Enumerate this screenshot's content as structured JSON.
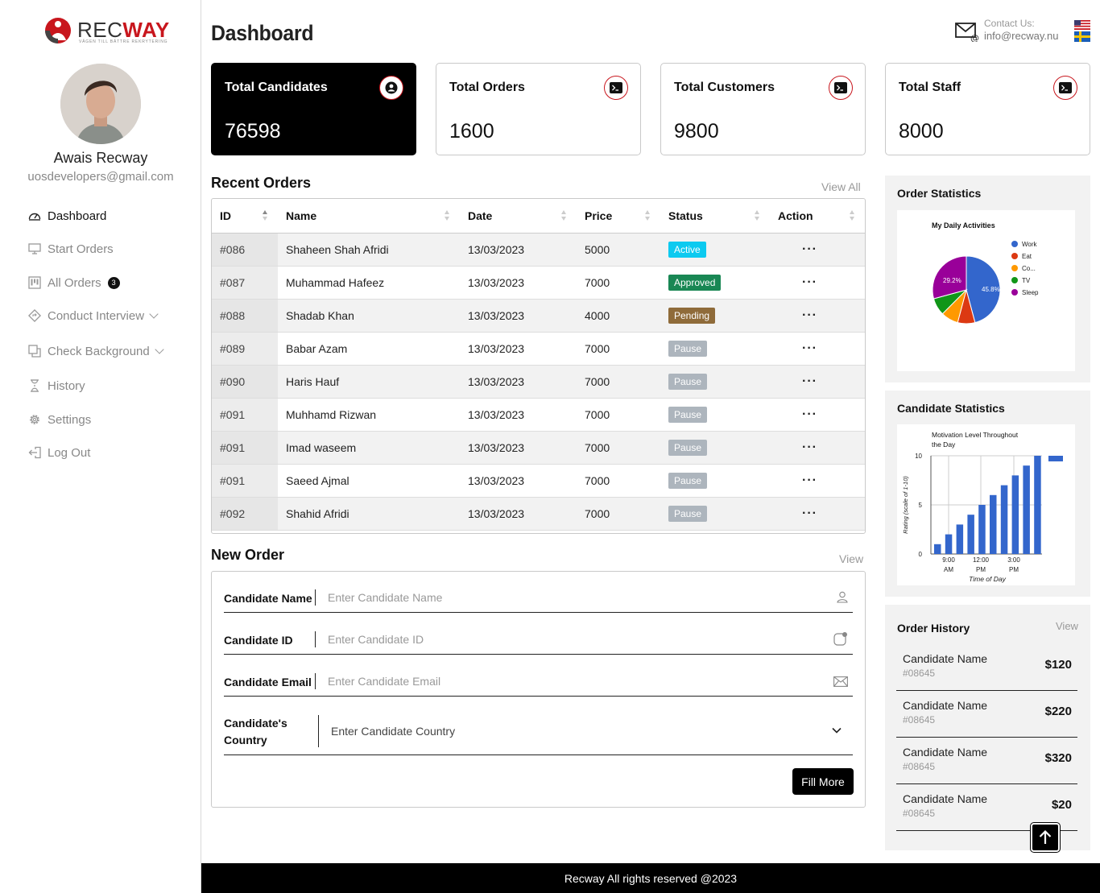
{
  "brand": {
    "name_part1": "REC",
    "name_part2": "WAY",
    "tagline": "VÄGEN TILL BÄTTRE REKRYTERING"
  },
  "user": {
    "name": "Awais Recway",
    "email": "uosdevelopers@gmail.com"
  },
  "sidebar": {
    "items": [
      {
        "label": "Dashboard",
        "icon": "speedometer-icon",
        "active": true
      },
      {
        "label": "Start Orders",
        "icon": "monitor-icon"
      },
      {
        "label": "All Orders",
        "icon": "kanban-icon",
        "badge": "3"
      },
      {
        "label": "Conduct Interview",
        "icon": "diamond-sign-icon",
        "has_dropdown": true
      },
      {
        "label": "Check Background",
        "icon": "copy-icon",
        "has_dropdown": true
      },
      {
        "label": "History",
        "icon": "hourglass-icon"
      },
      {
        "label": "Settings",
        "icon": "gear-icon"
      },
      {
        "label": "Log Out",
        "icon": "logout-icon"
      }
    ]
  },
  "header": {
    "title": "Dashboard",
    "contact_label": "Contact Us:",
    "contact_email": "info@recway.nu"
  },
  "stats": [
    {
      "title": "Total Candidates",
      "value": "76598",
      "icon": "person-icon"
    },
    {
      "title": "Total Orders",
      "value": "1600",
      "icon": "terminal-icon"
    },
    {
      "title": "Total Customers",
      "value": "9800",
      "icon": "terminal-icon"
    },
    {
      "title": "Total Staff",
      "value": "8000",
      "icon": "terminal-icon"
    }
  ],
  "recent_orders": {
    "title": "Recent Orders",
    "view_all": "View All",
    "columns": [
      "ID",
      "Name",
      "Date",
      "Price",
      "Status",
      "Action"
    ],
    "rows": [
      {
        "id": "#086",
        "name": "Shaheen Shah Afridi",
        "date": "13/03/2023",
        "price": "5000",
        "status": "Active"
      },
      {
        "id": "#087",
        "name": "Muhammad Hafeez",
        "date": "13/03/2023",
        "price": "7000",
        "status": "Approved"
      },
      {
        "id": "#088",
        "name": "Shadab Khan",
        "date": "13/03/2023",
        "price": "4000",
        "status": "Pending"
      },
      {
        "id": "#089",
        "name": "Babar Azam",
        "date": "13/03/2023",
        "price": "7000",
        "status": "Pause"
      },
      {
        "id": "#090",
        "name": "Haris Hauf",
        "date": "13/03/2023",
        "price": "7000",
        "status": "Pause"
      },
      {
        "id": "#091",
        "name": "Muhhamd Rizwan",
        "date": "13/03/2023",
        "price": "7000",
        "status": "Pause"
      },
      {
        "id": "#091",
        "name": "Imad waseem",
        "date": "13/03/2023",
        "price": "7000",
        "status": "Pause"
      },
      {
        "id": "#091",
        "name": "Saeed Ajmal",
        "date": "13/03/2023",
        "price": "7000",
        "status": "Pause"
      },
      {
        "id": "#092",
        "name": "Shahid Afridi",
        "date": "13/03/2023",
        "price": "7000",
        "status": "Pause"
      }
    ],
    "action_glyph": "···"
  },
  "new_order": {
    "title": "New Order",
    "view": "View",
    "fields": {
      "name_label": "Candidate Name",
      "name_placeholder": "Enter Candidate Name",
      "id_label": "Candidate ID",
      "id_placeholder": "Enter Candidate ID",
      "email_label": "Candidate Email",
      "email_placeholder": "Enter Candidate Email",
      "country_label_1": "Candidate's",
      "country_label_2": "Country",
      "country_value": "Enter Candidate Country"
    },
    "button": "Fill More"
  },
  "order_statistics": {
    "title": "Order Statistics",
    "chart_title": "My Daily Activities"
  },
  "candidate_statistics": {
    "title": "Candidate Statistics",
    "chart_title_1": "Motivation Level Throughout",
    "chart_title_2": "the Day"
  },
  "chart_data": [
    {
      "type": "pie",
      "title": "My Daily Activities",
      "slices": [
        {
          "label": "Work",
          "value": 45.8,
          "color": "#3366cc"
        },
        {
          "label": "Eat",
          "value": 8.3,
          "color": "#dc3912"
        },
        {
          "label": "Co...",
          "value": 8.3,
          "color": "#ff9900"
        },
        {
          "label": "TV",
          "value": 8.3,
          "color": "#109618"
        },
        {
          "label": "Sleep",
          "value": 29.2,
          "color": "#990099"
        }
      ],
      "data_labels": [
        "45.8%",
        "29.2%"
      ],
      "legend": "right"
    },
    {
      "type": "bar",
      "title": "Motivation Level Throughout the Day",
      "xlabel": "Time of Day",
      "ylabel": "Rating (scale of 1-10)",
      "ylim": [
        0,
        10
      ],
      "yticks": [
        "0",
        "5",
        "10"
      ],
      "xticks": [
        [
          "9:00",
          "AM"
        ],
        [
          "12:00",
          "PM"
        ],
        [
          "3:00",
          "PM"
        ]
      ],
      "values": [
        1,
        2,
        3,
        4,
        5,
        6,
        7,
        8,
        9,
        10
      ],
      "color": "#3366cc",
      "grid": true,
      "legend": "top-right"
    }
  ],
  "order_history": {
    "title": "Order History",
    "view": "View",
    "items": [
      {
        "name": "Candidate Name",
        "id": "#08645",
        "price": "$120"
      },
      {
        "name": "Candidate Name",
        "id": "#08645",
        "price": "$220"
      },
      {
        "name": "Candidate Name",
        "id": "#08645",
        "price": "$320"
      },
      {
        "name": "Candidate Name",
        "id": "#08645",
        "price": "$20"
      }
    ]
  },
  "footer": {
    "text": "Recway All rights reserved @2023"
  },
  "colors": {
    "brand_red": "#c8161d",
    "status_active": "#0dcaf0",
    "status_approved": "#198754",
    "status_pending": "#8f6b3a",
    "status_pause": "#adb5bd"
  }
}
